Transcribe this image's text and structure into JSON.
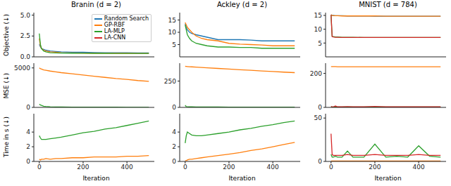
{
  "chart_data": [
    {
      "type": "line",
      "title": "Branin (d = 2)",
      "y_label": "Objective (↓)",
      "tick_labels": "y",
      "grid": false,
      "legend": "upper right",
      "x": [
        0,
        5,
        10,
        20,
        30,
        50,
        75,
        100,
        150,
        200,
        250,
        300,
        350,
        400,
        450,
        500
      ],
      "xlim": [
        -25,
        525
      ],
      "xticks": [
        0,
        200,
        400
      ],
      "ylim": [
        0,
        5.3
      ],
      "yticks": [
        {
          "value": 0,
          "label": "0.0"
        },
        2.5,
        {
          "value": 5,
          "label": "5.0"
        }
      ],
      "series": [
        {
          "name": "Random Search",
          "color": "#1f77b4",
          "values": [
            1.5,
            1.2,
            1.0,
            0.9,
            0.8,
            0.7,
            0.65,
            0.6,
            0.55,
            0.55,
            0.52,
            0.5,
            0.5,
            0.5,
            0.48,
            0.48
          ]
        },
        {
          "name": "GP-RBF",
          "color": "#ff7f0e",
          "values": [
            2.2,
            1.3,
            1.0,
            0.8,
            0.7,
            0.6,
            0.55,
            0.5,
            0.48,
            0.45,
            0.44,
            0.43,
            0.42,
            0.42,
            0.41,
            0.41
          ]
        },
        {
          "name": "LA-MLP",
          "color": "#2ca02c",
          "values": [
            2.8,
            1.5,
            1.0,
            0.7,
            0.6,
            0.5,
            0.47,
            0.45,
            0.44,
            0.43,
            0.42,
            0.42,
            0.41,
            0.41,
            0.41,
            0.41
          ]
        }
      ]
    },
    {
      "type": "line",
      "title": "Ackley (d = 2)",
      "tick_labels": "y",
      "grid": false,
      "x": [
        0,
        5,
        10,
        20,
        30,
        50,
        75,
        100,
        150,
        200,
        250,
        300,
        350,
        400,
        450,
        500
      ],
      "xlim": [
        -25,
        525
      ],
      "xticks": [
        0,
        200,
        400
      ],
      "ylim": [
        0,
        18
      ],
      "yticks": [
        5,
        10,
        15
      ],
      "series": [
        {
          "name": "Random Search",
          "color": "#1f77b4",
          "values": [
            13.5,
            12,
            11,
            10,
            9.5,
            9,
            8.5,
            8,
            7,
            7,
            7,
            6.8,
            6.5,
            6.5,
            6.5,
            6.5
          ]
        },
        {
          "name": "GP-RBF",
          "color": "#ff7f0e",
          "values": [
            14,
            13,
            12,
            11,
            10,
            8.5,
            7.5,
            7,
            6.5,
            5.5,
            5.2,
            5,
            4.8,
            4.5,
            4.5,
            4.5
          ]
        },
        {
          "name": "LA-MLP",
          "color": "#2ca02c",
          "values": [
            13,
            11,
            9,
            7.5,
            6.5,
            5.5,
            5,
            4.5,
            4,
            4,
            3.8,
            3.8,
            3.5,
            3.5,
            3.5,
            3.5
          ]
        }
      ]
    },
    {
      "type": "line",
      "title": "MNIST (d = 784)",
      "tick_labels": "y",
      "grid": false,
      "x": [
        0,
        5,
        10,
        20,
        30,
        50,
        75,
        100,
        150,
        200,
        250,
        300,
        350,
        400,
        450,
        500
      ],
      "xlim": [
        -25,
        525
      ],
      "xticks": [
        0,
        200,
        400
      ],
      "ylim": [
        0,
        16
      ],
      "yticks": [
        5,
        10,
        15
      ],
      "series": [
        {
          "name": "Random Search",
          "color": "#1f77b4",
          "values": [
            15.2,
            15,
            15,
            14.9,
            14.9,
            14.9,
            14.8,
            14.8,
            14.8,
            14.7,
            14.7,
            14.7,
            14.7,
            14.7,
            14.7,
            14.7
          ]
        },
        {
          "name": "GP-RBF",
          "color": "#ff7f0e",
          "values": [
            15.2,
            15,
            14.9,
            14.9,
            14.9,
            14.8,
            14.8,
            14.8,
            14.8,
            14.8,
            14.7,
            14.7,
            14.7,
            14.7,
            14.7,
            14.7
          ]
        },
        {
          "name": "LA-MLP",
          "color": "#2ca02c",
          "values": [
            15.2,
            7.5,
            7.3,
            7.2,
            7.2,
            7.1,
            7.1,
            7.1,
            7,
            7,
            7,
            7,
            7,
            7,
            7,
            7
          ]
        },
        {
          "name": "LA-CNN",
          "color": "#d62728",
          "values": [
            15.2,
            7.3,
            7.2,
            7.1,
            7.1,
            7,
            7,
            7,
            7,
            7,
            7,
            7,
            7,
            7,
            7,
            7
          ]
        }
      ]
    },
    {
      "type": "line",
      "y_label": "MSE (↓)",
      "tick_labels": "y",
      "grid": false,
      "x": [
        0,
        5,
        10,
        20,
        30,
        50,
        75,
        100,
        150,
        200,
        250,
        300,
        350,
        400,
        450,
        500
      ],
      "xlim": [
        -25,
        525
      ],
      "xticks": [
        0,
        200,
        400
      ],
      "ylim": [
        0,
        5600
      ],
      "yticks": [
        0,
        5000
      ],
      "series": [
        {
          "name": "GP-RBF",
          "color": "#ff7f0e",
          "values": [
            5000,
            4900,
            4850,
            4750,
            4700,
            4600,
            4500,
            4400,
            4250,
            4100,
            3950,
            3800,
            3650,
            3550,
            3400,
            3300
          ]
        },
        {
          "name": "LA-MLP",
          "color": "#2ca02c",
          "values": [
            400,
            300,
            250,
            150,
            120,
            80,
            60,
            50,
            40,
            30,
            30,
            25,
            25,
            20,
            20,
            20
          ]
        }
      ]
    },
    {
      "type": "line",
      "tick_labels": "y",
      "grid": false,
      "x": [
        0,
        5,
        10,
        20,
        30,
        50,
        75,
        100,
        150,
        200,
        250,
        300,
        350,
        400,
        450,
        500
      ],
      "xlim": [
        -25,
        525
      ],
      "xticks": [
        0,
        200,
        400
      ],
      "ylim": [
        0,
        420
      ],
      "yticks": [
        0,
        250
      ],
      "series": [
        {
          "name": "GP-RBF",
          "color": "#ff7f0e",
          "values": [
            390,
            389,
            388,
            386,
            385,
            382,
            379,
            376,
            370,
            364,
            358,
            352,
            346,
            341,
            335,
            330
          ]
        },
        {
          "name": "LA-MLP",
          "color": "#2ca02c",
          "values": [
            20,
            8,
            6,
            5,
            5,
            4,
            4,
            4,
            4,
            3,
            3,
            3,
            3,
            3,
            3,
            3
          ]
        }
      ]
    },
    {
      "type": "line",
      "tick_labels": "y",
      "grid": false,
      "x": [
        0,
        5,
        10,
        20,
        30,
        50,
        75,
        100,
        150,
        200,
        250,
        300,
        350,
        400,
        450,
        500
      ],
      "xlim": [
        -25,
        525
      ],
      "xticks": [
        0,
        200,
        400
      ],
      "ylim": [
        0,
        260
      ],
      "yticks": [
        0,
        200
      ],
      "series": [
        {
          "name": "GP-RBF",
          "color": "#ff7f0e",
          "values": [
            240,
            240,
            240,
            240,
            239,
            239,
            239,
            239,
            239,
            239,
            239,
            239,
            239,
            239,
            239,
            239
          ]
        },
        {
          "name": "LA-MLP",
          "color": "#2ca02c",
          "values": [
            5,
            3,
            2,
            2,
            2,
            2,
            2,
            2,
            2,
            2,
            2,
            2,
            2,
            2,
            2,
            2
          ]
        },
        {
          "name": "LA-CNN",
          "color": "#d62728",
          "values": [
            6,
            4,
            3,
            8,
            3,
            3,
            5,
            3,
            3,
            6,
            3,
            3,
            4,
            3,
            3,
            3
          ]
        }
      ]
    },
    {
      "type": "line",
      "y_label": "Time in s (↓)",
      "x_label": "Iteration",
      "grid": false,
      "x": [
        0,
        5,
        10,
        20,
        30,
        50,
        75,
        100,
        150,
        200,
        250,
        300,
        350,
        400,
        450,
        500
      ],
      "xlim": [
        -25,
        525
      ],
      "xticks": [
        0,
        200,
        400
      ],
      "ylim": [
        0,
        6.5
      ],
      "yticks": [
        0,
        2,
        4
      ],
      "series": [
        {
          "name": "GP-RBF",
          "color": "#ff7f0e",
          "values": [
            0.3,
            0.2,
            0.3,
            0.3,
            0.4,
            0.3,
            0.4,
            0.4,
            0.5,
            0.5,
            0.6,
            0.6,
            0.6,
            0.7,
            0.7,
            0.8
          ]
        },
        {
          "name": "LA-MLP",
          "color": "#2ca02c",
          "values": [
            3.5,
            3.2,
            3,
            3,
            3,
            3.1,
            3.2,
            3.3,
            3.6,
            3.9,
            4.1,
            4.4,
            4.6,
            4.9,
            5.2,
            5.5
          ]
        }
      ]
    },
    {
      "type": "line",
      "x_label": "Iteration",
      "grid": false,
      "x": [
        0,
        5,
        10,
        20,
        30,
        50,
        75,
        100,
        150,
        200,
        250,
        300,
        350,
        400,
        450,
        500
      ],
      "xlim": [
        -25,
        525
      ],
      "xticks": [
        0,
        200,
        400
      ],
      "ylim": [
        0,
        6.5
      ],
      "yticks": [
        0,
        2,
        4
      ],
      "series": [
        {
          "name": "GP-RBF",
          "color": "#ff7f0e",
          "values": [
            0.1,
            0.1,
            0.2,
            0.3,
            0.3,
            0.4,
            0.5,
            0.6,
            0.8,
            1,
            1.2,
            1.5,
            1.7,
            2,
            2.3,
            2.6
          ]
        },
        {
          "name": "LA-MLP",
          "color": "#2ca02c",
          "values": [
            2.5,
            3.5,
            4,
            3.8,
            3.6,
            3.5,
            3.5,
            3.6,
            3.8,
            4,
            4.3,
            4.5,
            4.8,
            5,
            5.3,
            5.5
          ]
        }
      ]
    },
    {
      "type": "line",
      "x_label": "Iteration",
      "grid": false,
      "x": [
        0,
        5,
        10,
        20,
        30,
        50,
        75,
        100,
        150,
        200,
        250,
        300,
        350,
        400,
        450,
        500
      ],
      "xlim": [
        -25,
        525
      ],
      "xticks": [
        0,
        200,
        400
      ],
      "ylim": [
        0,
        55
      ],
      "yticks": [
        0,
        50
      ],
      "series": [
        {
          "name": "GP-RBF",
          "color": "#ff7f0e",
          "values": [
            0.5,
            0.5,
            0.5,
            0.5,
            0.5,
            0.5,
            0.5,
            0.5,
            0.5,
            0.5,
            0.5,
            0.5,
            0.5,
            0.5,
            0.5,
            0.5
          ]
        },
        {
          "name": "LA-MLP",
          "color": "#2ca02c",
          "values": [
            8,
            5,
            5,
            6,
            5,
            5,
            12,
            5,
            5,
            20,
            5,
            6,
            5,
            18,
            6,
            5
          ]
        },
        {
          "name": "LA-CNN",
          "color": "#d62728",
          "values": [
            32,
            8,
            7,
            7,
            7,
            7,
            8,
            7,
            7,
            8,
            7,
            7,
            7,
            8,
            7,
            7
          ]
        }
      ]
    }
  ]
}
